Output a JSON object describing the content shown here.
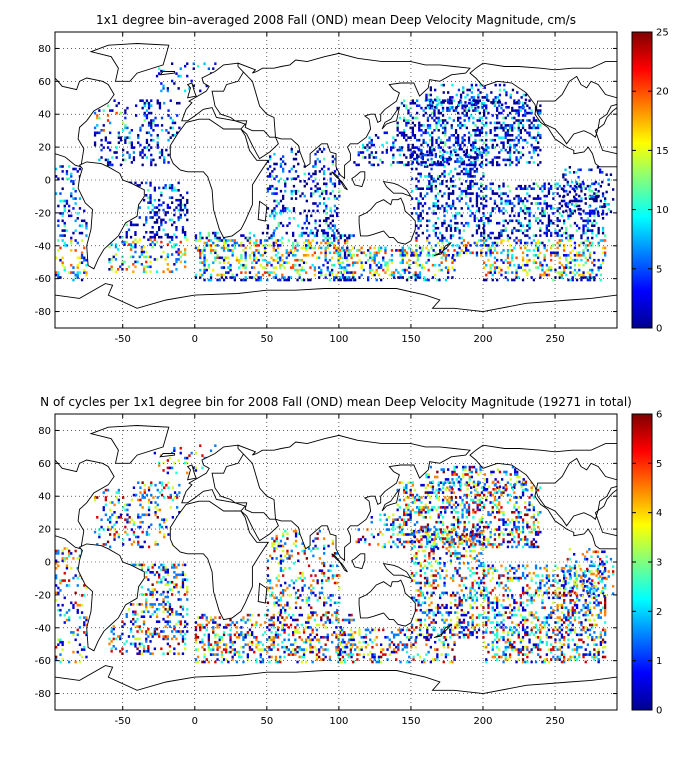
{
  "chart_data": [
    {
      "type": "heatmap",
      "title": "1x1 degree bin–averaged 2008 Fall (OND) mean Deep Velocity Magnitude, cm/s",
      "xlabel": "",
      "ylabel": "",
      "xlim": [
        -97,
        293
      ],
      "ylim": [
        -90,
        90
      ],
      "x_ticks": [
        -50,
        0,
        50,
        100,
        150,
        200,
        250
      ],
      "y_ticks": [
        -80,
        -60,
        -40,
        -20,
        0,
        20,
        40,
        60,
        80
      ],
      "grid": true,
      "colorbar": {
        "min": 0,
        "max": 25,
        "ticks": [
          0,
          5,
          10,
          15,
          20,
          25
        ]
      },
      "colormap": "jet"
    },
    {
      "type": "heatmap",
      "title": "N of cycles per 1x1 degree bin for 2008 Fall (OND) mean Deep Velocity Magnitude (19271 in total)",
      "xlabel": "",
      "ylabel": "",
      "xlim": [
        -97,
        293
      ],
      "ylim": [
        -90,
        90
      ],
      "x_ticks": [
        -50,
        0,
        50,
        100,
        150,
        200,
        250
      ],
      "y_ticks": [
        -80,
        -60,
        -40,
        -20,
        0,
        20,
        40,
        60,
        80
      ],
      "grid": true,
      "colorbar": {
        "min": 0,
        "max": 6,
        "ticks": [
          0,
          1,
          2,
          3,
          4,
          5,
          6
        ]
      },
      "colormap": "jet"
    }
  ]
}
